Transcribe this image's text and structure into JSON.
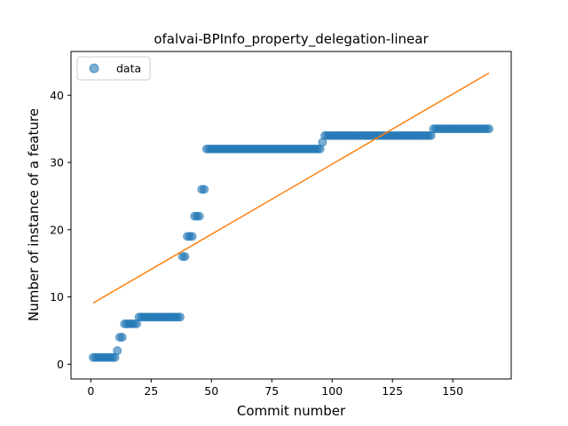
{
  "chart_data": {
    "type": "scatter",
    "title": "ofalvai-BPInfo_property_delegation-linear",
    "xlabel": "Commit number",
    "ylabel": "Number of instance of a feature",
    "xlim": [
      -8.2,
      174.2
    ],
    "ylim": [
      -2.2,
      46.5
    ],
    "xticks": [
      0,
      25,
      50,
      75,
      100,
      125,
      150
    ],
    "yticks": [
      0,
      10,
      20,
      30,
      40
    ],
    "legend": {
      "position": "top-left",
      "entries": [
        "data"
      ]
    },
    "grid": false,
    "series": [
      {
        "name": "data",
        "kind": "points",
        "color": "#1f77b4",
        "runs": [
          {
            "from": 1,
            "to": 10,
            "y": 1
          },
          {
            "from": 11,
            "to": 11,
            "y": 2
          },
          {
            "from": 12,
            "to": 13,
            "y": 4
          },
          {
            "from": 14,
            "to": 19,
            "y": 6
          },
          {
            "from": 20,
            "to": 37,
            "y": 7
          },
          {
            "from": 38,
            "to": 39,
            "y": 16
          },
          {
            "from": 40,
            "to": 42,
            "y": 19
          },
          {
            "from": 43,
            "to": 45,
            "y": 22
          },
          {
            "from": 46,
            "to": 47,
            "y": 26
          },
          {
            "from": 48,
            "to": 95,
            "y": 32
          },
          {
            "from": 96,
            "to": 96,
            "y": 33
          },
          {
            "from": 97,
            "to": 141,
            "y": 34
          },
          {
            "from": 142,
            "to": 165,
            "y": 35
          }
        ]
      },
      {
        "kind": "line",
        "color": "#ff7f0e",
        "x": [
          1,
          165
        ],
        "y": [
          9.1,
          43.3
        ]
      }
    ]
  }
}
